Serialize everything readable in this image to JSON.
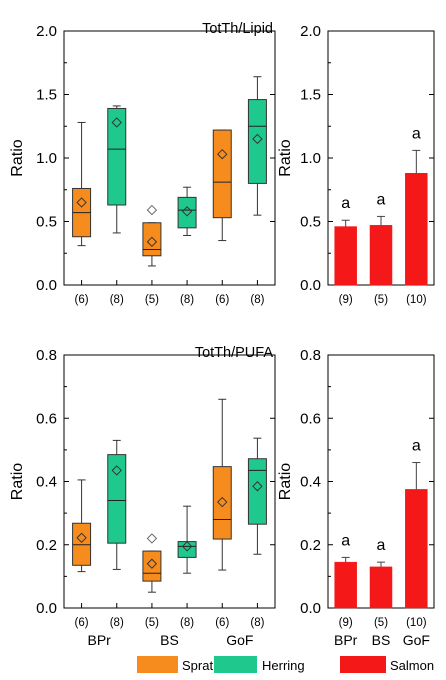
{
  "chart_data": [
    {
      "type": "box",
      "title": "TotTh/Lipid",
      "ylabel": "Ratio",
      "ylim": [
        0,
        2.0
      ],
      "yticks": [
        "0.0",
        "0.5",
        "1.0",
        "1.5",
        "2.0"
      ],
      "boxes": [
        {
          "group": "BPr",
          "species": "Sprat",
          "n": "(6)",
          "min": 0.31,
          "q1": 0.38,
          "median": 0.57,
          "q3": 0.76,
          "max": 1.28,
          "mean": 0.65
        },
        {
          "group": "BPr",
          "species": "Herring",
          "n": "(8)",
          "min": 0.41,
          "q1": 0.63,
          "median": 1.07,
          "q3": 1.39,
          "max": 1.41,
          "mean": 1.28
        },
        {
          "group": "BS",
          "species": "Sprat",
          "n": "(5)",
          "min": 0.15,
          "q1": 0.23,
          "median": 0.28,
          "q3": 0.49,
          "max": 0.49,
          "mean": 0.34,
          "outlier": 0.59
        },
        {
          "group": "BS",
          "species": "Herring",
          "n": "(8)",
          "min": 0.39,
          "q1": 0.45,
          "median": 0.59,
          "q3": 0.69,
          "max": 0.77,
          "mean": 0.58
        },
        {
          "group": "GoF",
          "species": "Sprat",
          "n": "(6)",
          "min": 0.35,
          "q1": 0.53,
          "median": 0.81,
          "q3": 1.22,
          "max": 1.22,
          "mean": 1.03
        },
        {
          "group": "GoF",
          "species": "Herring",
          "n": "(8)",
          "min": 0.55,
          "q1": 0.8,
          "median": 1.25,
          "q3": 1.46,
          "max": 1.64,
          "mean": 1.15
        }
      ]
    },
    {
      "type": "bar",
      "ylabel": "Ratio",
      "ylim": [
        0,
        2.0
      ],
      "yticks": [
        "0.0",
        "0.5",
        "1.0",
        "1.5",
        "2.0"
      ],
      "species": "Salmon",
      "categories": [
        "BPr",
        "BS",
        "GoF"
      ],
      "values": [
        0.46,
        0.47,
        0.88
      ],
      "errors": [
        0.05,
        0.07,
        0.18
      ],
      "n": [
        "(9)",
        "(5)",
        "(10)"
      ],
      "significance": [
        "a",
        "a",
        "a"
      ]
    },
    {
      "type": "box",
      "title": "TotTh/PUFA",
      "ylabel": "Ratio",
      "ylim": [
        0,
        0.8
      ],
      "yticks": [
        "0.0",
        "0.2",
        "0.4",
        "0.6",
        "0.8"
      ],
      "boxes": [
        {
          "group": "BPr",
          "species": "Sprat",
          "n": "(6)",
          "min": 0.115,
          "q1": 0.135,
          "median": 0.2,
          "q3": 0.268,
          "max": 0.405,
          "mean": 0.222
        },
        {
          "group": "BPr",
          "species": "Herring",
          "n": "(8)",
          "min": 0.122,
          "q1": 0.205,
          "median": 0.34,
          "q3": 0.485,
          "max": 0.53,
          "mean": 0.435
        },
        {
          "group": "BS",
          "species": "Sprat",
          "n": "(5)",
          "min": 0.05,
          "q1": 0.085,
          "median": 0.11,
          "q3": 0.18,
          "max": 0.18,
          "mean": 0.14,
          "outlier": 0.22
        },
        {
          "group": "BS",
          "species": "Herring",
          "n": "(8)",
          "min": 0.11,
          "q1": 0.16,
          "median": 0.195,
          "q3": 0.21,
          "max": 0.322,
          "mean": 0.195
        },
        {
          "group": "GoF",
          "species": "Sprat",
          "n": "(6)",
          "min": 0.12,
          "q1": 0.218,
          "median": 0.28,
          "q3": 0.447,
          "max": 0.66,
          "mean": 0.335
        },
        {
          "group": "GoF",
          "species": "Herring",
          "n": "(8)",
          "min": 0.17,
          "q1": 0.265,
          "median": 0.435,
          "q3": 0.472,
          "max": 0.537,
          "mean": 0.385
        }
      ],
      "xcategories": [
        "BPr",
        "BS",
        "GoF"
      ]
    },
    {
      "type": "bar",
      "ylabel": "Ratio",
      "ylim": [
        0,
        0.8
      ],
      "yticks": [
        "0.0",
        "0.2",
        "0.4",
        "0.6",
        "0.8"
      ],
      "species": "Salmon",
      "categories": [
        "BPr",
        "BS",
        "GoF"
      ],
      "values": [
        0.145,
        0.13,
        0.375
      ],
      "errors": [
        0.015,
        0.015,
        0.085
      ],
      "n": [
        "(9)",
        "(5)",
        "(10)"
      ],
      "significance": [
        "a",
        "a",
        "a"
      ]
    }
  ],
  "legend": [
    {
      "label": "Sprat",
      "color": "#f78c1e"
    },
    {
      "label": "Herring",
      "color": "#1fc88c"
    },
    {
      "label": "Salmon",
      "color": "#f51818"
    }
  ],
  "colors": {
    "Sprat": "#f78c1e",
    "Herring": "#1fc88c",
    "Salmon": "#f51818"
  }
}
